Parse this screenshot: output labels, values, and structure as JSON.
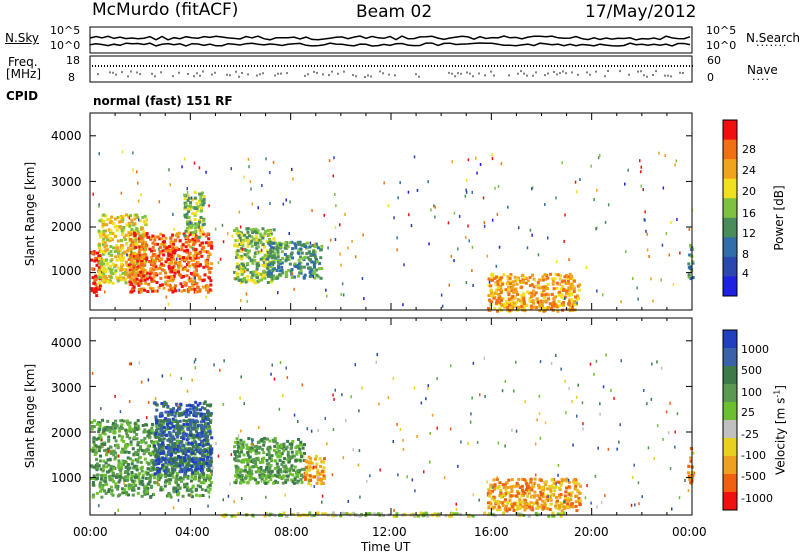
{
  "header": {
    "title": "McMurdo (fitACF)",
    "beam": "Beam 02",
    "date": "17/May/2012"
  },
  "panels": {
    "nsky_label": "N.Sky",
    "nsky_ticks": [
      "10^5",
      "10^0"
    ],
    "nsearch_label": "N.Search",
    "nsearch_ticks": [
      "10^5",
      "10^0"
    ],
    "freq_label_1": "Freq.",
    "freq_label_2": "[MHz]",
    "freq_ticks": [
      "18",
      "8"
    ],
    "nave_label": "Nave",
    "nave_ticks": [
      "60",
      "0"
    ],
    "cpid_label": "CPID",
    "cpid_text": "normal (fast) 151 RF"
  },
  "chart_data": [
    {
      "type": "heatmap",
      "name": "power",
      "ylabel": "Slant Range [km]",
      "yticks": [
        1000,
        2000,
        3000,
        4000
      ],
      "ylim": [
        180,
        4500
      ],
      "xlim": [
        0,
        24
      ],
      "colorbar": {
        "label": "Power [dB]",
        "ticks": [
          "4",
          "8",
          "12",
          "16",
          "20",
          "24",
          "28"
        ],
        "colors": [
          "#1e22e0",
          "#2a48b0",
          "#2f6ea6",
          "#4a8c5a",
          "#7fc241",
          "#f0e020",
          "#f2a31c",
          "#f07013",
          "#f01010"
        ]
      },
      "regions": [
        {
          "t": [
            0.0,
            0.4
          ],
          "r": [
            500,
            1500
          ],
          "level": 8
        },
        {
          "t": [
            0.3,
            2.2
          ],
          "r": [
            800,
            2300
          ],
          "level": 5
        },
        {
          "t": [
            1.5,
            4.8
          ],
          "r": [
            600,
            1900
          ],
          "level": 7
        },
        {
          "t": [
            3.7,
            4.5
          ],
          "r": [
            1800,
            2800
          ],
          "level": 4
        },
        {
          "t": [
            5.7,
            7.3
          ],
          "r": [
            800,
            2000
          ],
          "level": 4
        },
        {
          "t": [
            7.0,
            9.2
          ],
          "r": [
            900,
            1700
          ],
          "level": 3
        },
        {
          "t": [
            15.8,
            19.5
          ],
          "r": [
            180,
            1000
          ],
          "level": 6
        },
        {
          "t": [
            23.8,
            24.0
          ],
          "r": [
            900,
            1700
          ],
          "level": 3
        }
      ]
    },
    {
      "type": "heatmap",
      "name": "velocity",
      "ylabel": "Slant Range [km]",
      "xlabel": "Time UT",
      "yticks": [
        1000,
        2000,
        3000,
        4000
      ],
      "xticks": [
        "00:00",
        "04:00",
        "08:00",
        "12:00",
        "16:00",
        "20:00",
        "00:00"
      ],
      "ylim": [
        180,
        4500
      ],
      "xlim": [
        0,
        24
      ],
      "colorbar": {
        "label": "Velocity [m s^-1]",
        "ticks": [
          "1000",
          "500",
          "100",
          "25",
          "-25",
          "-100",
          "-500",
          "-1000"
        ],
        "colors": [
          "#2040c0",
          "#3a62a8",
          "#3c7a4a",
          "#5a9a50",
          "#6cc030",
          "#c0c0c0",
          "#e8d020",
          "#f0a020",
          "#f06010",
          "#f01010"
        ]
      },
      "regions": [
        {
          "t": [
            0.0,
            4.8
          ],
          "r": [
            600,
            2300
          ],
          "level": 3
        },
        {
          "t": [
            2.5,
            4.8
          ],
          "r": [
            1100,
            2700
          ],
          "level": 1
        },
        {
          "t": [
            5.7,
            8.5
          ],
          "r": [
            900,
            1900
          ],
          "level": 3
        },
        {
          "t": [
            8.5,
            9.3
          ],
          "r": [
            900,
            1500
          ],
          "level": 7
        },
        {
          "t": [
            15.8,
            19.5
          ],
          "r": [
            300,
            1000
          ],
          "level": 7
        },
        {
          "t": [
            5.0,
            19.0
          ],
          "r": [
            180,
            260
          ],
          "level": 5
        },
        {
          "t": [
            23.8,
            24.0
          ],
          "r": [
            900,
            1700
          ],
          "level": 7
        }
      ]
    }
  ]
}
